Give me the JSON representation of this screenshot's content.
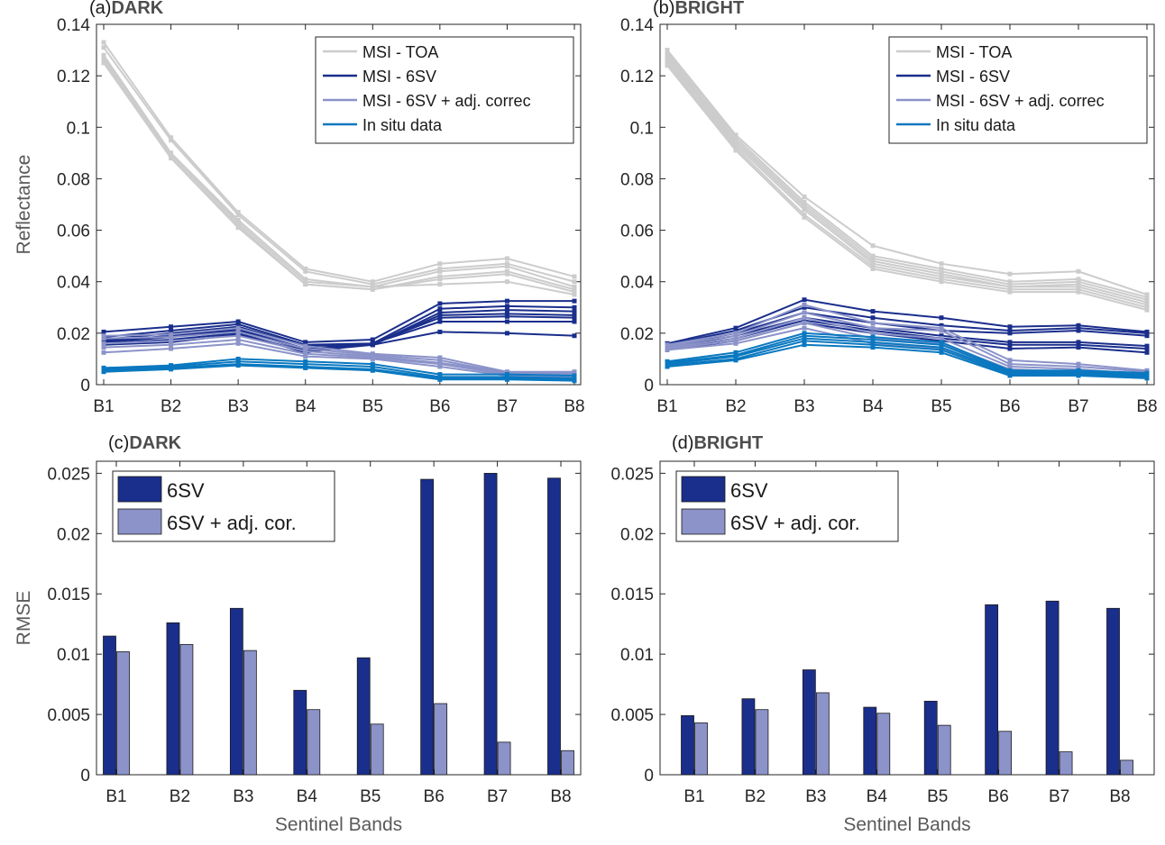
{
  "chart_data": [
    {
      "id": "a",
      "type": "line",
      "panel_label": "(a)",
      "title": "DARK",
      "xlabel": "",
      "ylabel": "Reflectance",
      "categories": [
        "B1",
        "B2",
        "B3",
        "B4",
        "B5",
        "B6",
        "B7",
        "B8"
      ],
      "ylim": [
        0,
        0.14
      ],
      "yticks": [
        0,
        0.02,
        0.04,
        0.06,
        0.08,
        0.1,
        0.12,
        0.14
      ],
      "ytick_labels": [
        "0",
        "0.02",
        "0.04",
        "0.06",
        "0.08",
        "0.1",
        "0.12",
        "0.14"
      ],
      "legend": {
        "position": "top-right",
        "entries": [
          {
            "label": "MSI - TOA",
            "color": "#cccccc"
          },
          {
            "label": "MSI - 6SV",
            "color": "#1a2e8c"
          },
          {
            "label": "MSI - 6SV + adj. correc",
            "color": "#8b93c9"
          },
          {
            "label": "In situ data",
            "color": "#0a78c0"
          }
        ]
      },
      "series": [
        {
          "name": "MSI - TOA",
          "color": "#cccccc",
          "values": [
            0.133,
            0.096,
            0.067,
            0.045,
            0.04,
            0.047,
            0.049,
            0.042
          ]
        },
        {
          "name": "MSI - TOA",
          "color": "#cccccc",
          "values": [
            0.131,
            0.095,
            0.066,
            0.044,
            0.039,
            0.045,
            0.047,
            0.04
          ]
        },
        {
          "name": "MSI - TOA",
          "color": "#cccccc",
          "values": [
            0.128,
            0.09,
            0.063,
            0.04,
            0.038,
            0.044,
            0.046,
            0.038
          ]
        },
        {
          "name": "MSI - TOA",
          "color": "#cccccc",
          "values": [
            0.126,
            0.089,
            0.062,
            0.039,
            0.037,
            0.042,
            0.044,
            0.037
          ]
        },
        {
          "name": "MSI - TOA",
          "color": "#cccccc",
          "values": [
            0.125,
            0.088,
            0.061,
            0.039,
            0.037,
            0.041,
            0.043,
            0.036
          ]
        },
        {
          "name": "MSI - TOA",
          "color": "#cccccc",
          "values": [
            0.127,
            0.09,
            0.064,
            0.041,
            0.038,
            0.039,
            0.04,
            0.035
          ]
        },
        {
          "name": "MSI - 6SV",
          "color": "#1a2e8c",
          "values": [
            0.0205,
            0.0225,
            0.0245,
            0.0165,
            0.0175,
            0.0315,
            0.0325,
            0.0325
          ]
        },
        {
          "name": "MSI - 6SV",
          "color": "#1a2e8c",
          "values": [
            0.0185,
            0.021,
            0.0235,
            0.0155,
            0.016,
            0.0295,
            0.0305,
            0.03
          ]
        },
        {
          "name": "MSI - 6SV",
          "color": "#1a2e8c",
          "values": [
            0.0175,
            0.02,
            0.0225,
            0.015,
            0.0155,
            0.028,
            0.029,
            0.0285
          ]
        },
        {
          "name": "MSI - 6SV",
          "color": "#1a2e8c",
          "values": [
            0.017,
            0.019,
            0.0215,
            0.014,
            0.0155,
            0.027,
            0.0275,
            0.027
          ]
        },
        {
          "name": "MSI - 6SV",
          "color": "#1a2e8c",
          "values": [
            0.0165,
            0.0185,
            0.021,
            0.0135,
            0.016,
            0.026,
            0.0265,
            0.026
          ]
        },
        {
          "name": "MSI - 6SV",
          "color": "#1a2e8c",
          "values": [
            0.016,
            0.0175,
            0.02,
            0.0125,
            0.016,
            0.0245,
            0.0245,
            0.0245
          ]
        },
        {
          "name": "MSI - 6SV",
          "color": "#1a2e8c",
          "values": [
            0.0155,
            0.0165,
            0.0195,
            0.013,
            0.0155,
            0.0205,
            0.02,
            0.019
          ]
        },
        {
          "name": "MSI - 6SV + adj. correc",
          "color": "#8b93c9",
          "values": [
            0.019,
            0.0195,
            0.022,
            0.015,
            0.012,
            0.0105,
            0.005,
            0.005
          ]
        },
        {
          "name": "MSI - 6SV + adj. correc",
          "color": "#8b93c9",
          "values": [
            0.018,
            0.0185,
            0.0205,
            0.014,
            0.0115,
            0.0095,
            0.0045,
            0.0045
          ]
        },
        {
          "name": "MSI - 6SV + adj. correc",
          "color": "#8b93c9",
          "values": [
            0.016,
            0.017,
            0.019,
            0.013,
            0.011,
            0.0085,
            0.0045,
            0.004
          ]
        },
        {
          "name": "MSI - 6SV + adj. correc",
          "color": "#8b93c9",
          "values": [
            0.0145,
            0.0155,
            0.0175,
            0.012,
            0.0105,
            0.008,
            0.004,
            0.0035
          ]
        },
        {
          "name": "MSI - 6SV + adj. correc",
          "color": "#8b93c9",
          "values": [
            0.0125,
            0.014,
            0.016,
            0.011,
            0.01,
            0.007,
            0.0035,
            0.003
          ]
        },
        {
          "name": "In situ data",
          "color": "#0a78c0",
          "values": [
            0.0065,
            0.0075,
            0.01,
            0.009,
            0.008,
            0.004,
            0.004,
            0.0035
          ]
        },
        {
          "name": "In situ data",
          "color": "#0a78c0",
          "values": [
            0.006,
            0.007,
            0.009,
            0.008,
            0.007,
            0.003,
            0.003,
            0.0025
          ]
        },
        {
          "name": "In situ data",
          "color": "#0a78c0",
          "values": [
            0.0055,
            0.0065,
            0.008,
            0.007,
            0.006,
            0.0025,
            0.0025,
            0.002
          ]
        },
        {
          "name": "In situ data",
          "color": "#0a78c0",
          "values": [
            0.005,
            0.006,
            0.0075,
            0.0065,
            0.0055,
            0.002,
            0.002,
            0.0015
          ]
        }
      ]
    },
    {
      "id": "b",
      "type": "line",
      "panel_label": "(b)",
      "title": "BRIGHT",
      "xlabel": "",
      "ylabel": "",
      "categories": [
        "B1",
        "B2",
        "B3",
        "B4",
        "B5",
        "B6",
        "B7",
        "B8"
      ],
      "ylim": [
        0,
        0.14
      ],
      "yticks": [
        0,
        0.02,
        0.04,
        0.06,
        0.08,
        0.1,
        0.12,
        0.14
      ],
      "ytick_labels": [
        "0",
        "0.02",
        "0.04",
        "0.06",
        "0.08",
        "0.1",
        "0.12",
        "0.14"
      ],
      "legend": {
        "position": "top-right",
        "entries": [
          {
            "label": "MSI - TOA",
            "color": "#cccccc"
          },
          {
            "label": "MSI - 6SV",
            "color": "#1a2e8c"
          },
          {
            "label": "MSI - 6SV + adj. correc",
            "color": "#8b93c9"
          },
          {
            "label": "In situ data",
            "color": "#0a78c0"
          }
        ]
      },
      "series": [
        {
          "name": "MSI - TOA",
          "color": "#cccccc",
          "values": [
            0.13,
            0.097,
            0.073,
            0.054,
            0.047,
            0.043,
            0.044,
            0.035
          ]
        },
        {
          "name": "MSI - TOA",
          "color": "#cccccc",
          "values": [
            0.129,
            0.096,
            0.071,
            0.05,
            0.045,
            0.04,
            0.041,
            0.034
          ]
        },
        {
          "name": "MSI - TOA",
          "color": "#cccccc",
          "values": [
            0.128,
            0.095,
            0.07,
            0.049,
            0.044,
            0.039,
            0.04,
            0.033
          ]
        },
        {
          "name": "MSI - TOA",
          "color": "#cccccc",
          "values": [
            0.127,
            0.094,
            0.069,
            0.048,
            0.043,
            0.038,
            0.039,
            0.032
          ]
        },
        {
          "name": "MSI - TOA",
          "color": "#cccccc",
          "values": [
            0.126,
            0.093,
            0.068,
            0.047,
            0.042,
            0.038,
            0.038,
            0.031
          ]
        },
        {
          "name": "MSI - TOA",
          "color": "#cccccc",
          "values": [
            0.125,
            0.092,
            0.066,
            0.046,
            0.041,
            0.037,
            0.037,
            0.03
          ]
        },
        {
          "name": "MSI - TOA",
          "color": "#cccccc",
          "values": [
            0.124,
            0.091,
            0.065,
            0.045,
            0.04,
            0.036,
            0.036,
            0.029
          ]
        },
        {
          "name": "MSI - 6SV",
          "color": "#1a2e8c",
          "values": [
            0.016,
            0.022,
            0.033,
            0.0285,
            0.026,
            0.0225,
            0.023,
            0.0205
          ]
        },
        {
          "name": "MSI - 6SV",
          "color": "#1a2e8c",
          "values": [
            0.0155,
            0.021,
            0.03,
            0.026,
            0.023,
            0.021,
            0.022,
            0.02
          ]
        },
        {
          "name": "MSI - 6SV",
          "color": "#1a2e8c",
          "values": [
            0.015,
            0.02,
            0.028,
            0.024,
            0.021,
            0.02,
            0.021,
            0.019
          ]
        },
        {
          "name": "MSI - 6SV",
          "color": "#1a2e8c",
          "values": [
            0.0145,
            0.019,
            0.026,
            0.022,
            0.019,
            0.0165,
            0.0165,
            0.015
          ]
        },
        {
          "name": "MSI - 6SV",
          "color": "#1a2e8c",
          "values": [
            0.014,
            0.018,
            0.025,
            0.021,
            0.018,
            0.0155,
            0.0155,
            0.014
          ]
        },
        {
          "name": "MSI - 6SV",
          "color": "#1a2e8c",
          "values": [
            0.0135,
            0.017,
            0.024,
            0.02,
            0.017,
            0.014,
            0.0145,
            0.0125
          ]
        },
        {
          "name": "MSI - 6SV + adj. correc",
          "color": "#8b93c9",
          "values": [
            0.0155,
            0.02,
            0.031,
            0.024,
            0.022,
            0.0095,
            0.008,
            0.0055
          ]
        },
        {
          "name": "MSI - 6SV + adj. correc",
          "color": "#8b93c9",
          "values": [
            0.015,
            0.019,
            0.028,
            0.022,
            0.021,
            0.008,
            0.007,
            0.005
          ]
        },
        {
          "name": "MSI - 6SV + adj. correc",
          "color": "#8b93c9",
          "values": [
            0.0145,
            0.018,
            0.026,
            0.02,
            0.018,
            0.007,
            0.006,
            0.004
          ]
        },
        {
          "name": "MSI - 6SV + adj. correc",
          "color": "#8b93c9",
          "values": [
            0.014,
            0.017,
            0.024,
            0.018,
            0.016,
            0.006,
            0.005,
            0.0035
          ]
        },
        {
          "name": "MSI - 6SV + adj. correc",
          "color": "#8b93c9",
          "values": [
            0.0135,
            0.016,
            0.022,
            0.016,
            0.014,
            0.005,
            0.0045,
            0.003
          ]
        },
        {
          "name": "In situ data",
          "color": "#0a78c0",
          "values": [
            0.009,
            0.0125,
            0.02,
            0.0185,
            0.0165,
            0.0055,
            0.0055,
            0.0045
          ]
        },
        {
          "name": "In situ data",
          "color": "#0a78c0",
          "values": [
            0.0085,
            0.0115,
            0.019,
            0.0175,
            0.0155,
            0.005,
            0.005,
            0.004
          ]
        },
        {
          "name": "In situ data",
          "color": "#0a78c0",
          "values": [
            0.008,
            0.011,
            0.018,
            0.0165,
            0.0145,
            0.0045,
            0.0045,
            0.0035
          ]
        },
        {
          "name": "In situ data",
          "color": "#0a78c0",
          "values": [
            0.0075,
            0.01,
            0.017,
            0.0155,
            0.0135,
            0.004,
            0.004,
            0.003
          ]
        },
        {
          "name": "In situ data",
          "color": "#0a78c0",
          "values": [
            0.007,
            0.0095,
            0.0155,
            0.0145,
            0.0125,
            0.0035,
            0.0035,
            0.0025
          ]
        }
      ]
    },
    {
      "id": "c",
      "type": "bar",
      "panel_label": "(c)",
      "title": "DARK",
      "xlabel": "Sentinel Bands",
      "ylabel": "RMSE",
      "categories": [
        "B1",
        "B2",
        "B3",
        "B4",
        "B5",
        "B6",
        "B7",
        "B8"
      ],
      "ylim": [
        0,
        0.026
      ],
      "yticks": [
        0,
        0.005,
        0.01,
        0.015,
        0.02,
        0.025
      ],
      "ytick_labels": [
        "0",
        "0.005",
        "0.01",
        "0.015",
        "0.02",
        "0.025"
      ],
      "legend": {
        "position": "top-left",
        "entries": [
          {
            "label": "6SV",
            "color": "#1a2e8c"
          },
          {
            "label": "6SV + adj. cor.",
            "color": "#8b93c9"
          }
        ]
      },
      "series": [
        {
          "name": "6SV",
          "color": "#1a2e8c",
          "values": [
            0.0115,
            0.0126,
            0.0138,
            0.007,
            0.0097,
            0.0245,
            0.025,
            0.0246
          ]
        },
        {
          "name": "6SV + adj. cor.",
          "color": "#8b93c9",
          "values": [
            0.0102,
            0.0108,
            0.0103,
            0.0054,
            0.0042,
            0.0059,
            0.0027,
            0.002
          ]
        }
      ]
    },
    {
      "id": "d",
      "type": "bar",
      "panel_label": "(d)",
      "title": "BRIGHT",
      "xlabel": "Sentinel Bands",
      "ylabel": "",
      "categories": [
        "B1",
        "B2",
        "B3",
        "B4",
        "B5",
        "B6",
        "B7",
        "B8"
      ],
      "ylim": [
        0,
        0.026
      ],
      "yticks": [
        0,
        0.005,
        0.01,
        0.015,
        0.02,
        0.025
      ],
      "ytick_labels": [
        "0",
        "0.005",
        "0.01",
        "0.015",
        "0.02",
        "0.025"
      ],
      "legend": {
        "position": "top-left",
        "entries": [
          {
            "label": "6SV",
            "color": "#1a2e8c"
          },
          {
            "label": "6SV + adj. cor.",
            "color": "#8b93c9"
          }
        ]
      },
      "series": [
        {
          "name": "6SV",
          "color": "#1a2e8c",
          "values": [
            0.0049,
            0.0063,
            0.0087,
            0.0056,
            0.0061,
            0.0141,
            0.0144,
            0.0138
          ]
        },
        {
          "name": "6SV + adj. cor.",
          "color": "#8b93c9",
          "values": [
            0.0043,
            0.0054,
            0.0068,
            0.0051,
            0.0041,
            0.0036,
            0.0019,
            0.0012
          ]
        }
      ]
    }
  ]
}
